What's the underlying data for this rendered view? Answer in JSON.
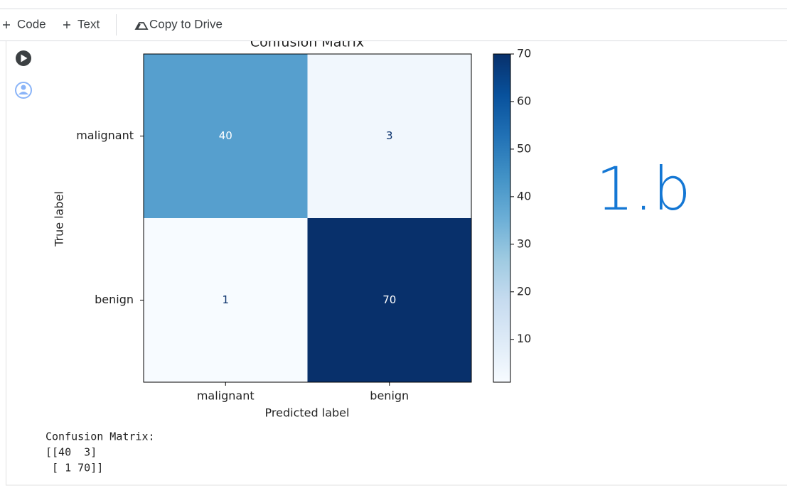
{
  "toolbar": {
    "buttons": [
      "Code",
      "Text",
      "Copy to Drive"
    ]
  },
  "chart_data": {
    "type": "heatmap",
    "title": "Confusion Matrix",
    "x_label": "Predicted label",
    "y_label": "True label",
    "x_categories": [
      "malignant",
      "benign"
    ],
    "y_categories": [
      "malignant",
      "benign"
    ],
    "values": [
      [
        40,
        3
      ],
      [
        1,
        70
      ]
    ],
    "colormap": "Blues",
    "clim": [
      1,
      70
    ],
    "cticks": [
      10,
      20,
      30,
      40,
      50,
      60,
      70
    ]
  },
  "output": {
    "lines": [
      "Confusion Matrix:",
      "[[40  3]",
      " [ 1 70]]"
    ]
  },
  "annotation": "1.b"
}
